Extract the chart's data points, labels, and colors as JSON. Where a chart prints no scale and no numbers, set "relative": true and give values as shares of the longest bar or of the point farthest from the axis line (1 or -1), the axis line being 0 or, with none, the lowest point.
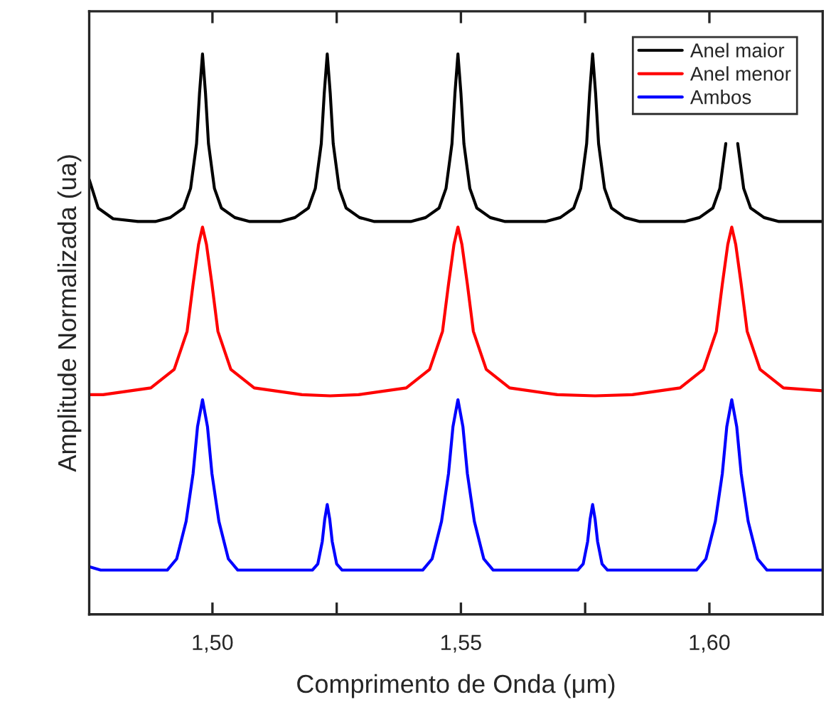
{
  "chart_data": {
    "type": "line",
    "relative": true,
    "xlabel": "Comprimento de Onda (μm)",
    "ylabel": "Amplitude Normalizada (ua)",
    "xlim": [
      1.4752,
      1.6228
    ],
    "xticks": [
      {
        "value": 1.5,
        "label": "1,50"
      },
      {
        "value": 1.525,
        "label": null
      },
      {
        "value": 1.55,
        "label": "1,55"
      },
      {
        "value": 1.575,
        "label": null
      },
      {
        "value": 1.6,
        "label": "1,60"
      }
    ],
    "legend": "top right",
    "grid": false,
    "line_style": "solid",
    "marker": "none",
    "series": [
      {
        "name": "Anel maior",
        "color": "#000000",
        "x": [
          1.4752,
          1.477,
          1.48,
          1.485,
          1.4885,
          1.4915,
          1.4942,
          1.4956,
          1.4968,
          1.4974,
          1.498,
          1.4986,
          1.4992,
          1.5004,
          1.5018,
          1.5045,
          1.5075,
          1.5136,
          1.5166,
          1.5193,
          1.5207,
          1.5219,
          1.5225,
          1.5231,
          1.5237,
          1.5243,
          1.5255,
          1.5269,
          1.5296,
          1.5326,
          1.5399,
          1.5429,
          1.5456,
          1.547,
          1.5482,
          1.5488,
          1.5494,
          1.55,
          1.5506,
          1.5518,
          1.5532,
          1.5559,
          1.5589,
          1.567,
          1.57,
          1.5727,
          1.5741,
          1.5753,
          1.5759,
          1.5765,
          1.5771,
          1.5777,
          1.5789,
          1.5803,
          1.583,
          1.586,
          1.595,
          1.598,
          1.6007,
          1.6021,
          1.6033,
          1.6039,
          1.6045,
          1.6051,
          1.6057,
          1.6069,
          1.6083,
          1.611,
          1.614,
          1.6228
        ],
        "values": [
          0.776,
          0.725,
          0.706,
          0.701,
          0.701,
          0.708,
          0.725,
          0.76,
          0.84,
          0.93,
          1.0,
          0.93,
          0.84,
          0.76,
          0.725,
          0.708,
          0.701,
          0.701,
          0.708,
          0.725,
          0.76,
          0.84,
          0.93,
          1.0,
          0.93,
          0.84,
          0.76,
          0.725,
          0.708,
          0.701,
          0.701,
          0.708,
          0.725,
          0.76,
          0.84,
          0.93,
          1.0,
          0.93,
          0.84,
          0.76,
          0.725,
          0.708,
          0.701,
          0.701,
          0.708,
          0.725,
          0.76,
          0.84,
          0.93,
          1.0,
          0.93,
          0.84,
          0.76,
          0.725,
          0.708,
          0.701,
          0.701,
          0.708,
          0.725,
          0.76,
          0.84,
          null,
          null,
          null,
          0.84,
          0.76,
          0.725,
          0.708,
          0.701,
          0.701
        ]
      },
      {
        "name": "Anel menor",
        "color": "#ff0000",
        "x": [
          1.4752,
          1.478,
          1.4876,
          1.4923,
          1.4949,
          1.4961,
          1.4972,
          1.498,
          1.4988,
          1.4999,
          1.5011,
          1.5037,
          1.5084,
          1.518,
          1.5237,
          1.5294,
          1.539,
          1.5437,
          1.5463,
          1.5475,
          1.5486,
          1.5494,
          1.5502,
          1.5513,
          1.5525,
          1.5551,
          1.5598,
          1.5694,
          1.577,
          1.5845,
          1.5941,
          1.5988,
          1.6014,
          1.6026,
          1.6037,
          1.6045,
          1.6053,
          1.6064,
          1.6076,
          1.6102,
          1.6149,
          1.6228
        ],
        "values": [
          0.392,
          0.392,
          0.404,
          0.437,
          0.505,
          0.589,
          0.66,
          0.691,
          0.66,
          0.589,
          0.505,
          0.437,
          0.404,
          0.392,
          0.39,
          0.392,
          0.404,
          0.437,
          0.505,
          0.589,
          0.66,
          0.691,
          0.66,
          0.589,
          0.505,
          0.437,
          0.404,
          0.392,
          0.39,
          0.392,
          0.404,
          0.437,
          0.505,
          0.589,
          0.66,
          0.691,
          0.66,
          0.589,
          0.505,
          0.437,
          0.404,
          0.399
        ]
      },
      {
        "name": "Ambos",
        "color": "#0000ff",
        "x": [
          1.4752,
          1.4775,
          1.4909,
          1.4928,
          1.4947,
          1.4961,
          1.497,
          1.498,
          1.499,
          1.4999,
          1.5013,
          1.5032,
          1.5051,
          1.5201,
          1.5212,
          1.5221,
          1.5226,
          1.5231,
          1.5236,
          1.5241,
          1.525,
          1.5261,
          1.5423,
          1.5442,
          1.5461,
          1.5475,
          1.5484,
          1.5494,
          1.5504,
          1.5513,
          1.5527,
          1.5546,
          1.5565,
          1.5735,
          1.5746,
          1.5755,
          1.576,
          1.5765,
          1.577,
          1.5775,
          1.5784,
          1.5795,
          1.5974,
          1.5993,
          1.6012,
          1.6026,
          1.6035,
          1.6045,
          1.6055,
          1.6064,
          1.6078,
          1.6097,
          1.6116,
          1.6228
        ],
        "values": [
          0.085,
          0.079,
          0.079,
          0.099,
          0.166,
          0.251,
          0.335,
          0.383,
          0.335,
          0.251,
          0.166,
          0.099,
          0.079,
          0.079,
          0.09,
          0.13,
          0.17,
          0.196,
          0.17,
          0.13,
          0.09,
          0.079,
          0.079,
          0.099,
          0.166,
          0.251,
          0.335,
          0.383,
          0.335,
          0.251,
          0.166,
          0.099,
          0.079,
          0.079,
          0.09,
          0.13,
          0.17,
          0.196,
          0.17,
          0.13,
          0.09,
          0.079,
          0.079,
          0.099,
          0.166,
          0.251,
          0.335,
          0.383,
          0.335,
          0.251,
          0.166,
          0.099,
          0.079,
          0.079
        ]
      }
    ]
  }
}
